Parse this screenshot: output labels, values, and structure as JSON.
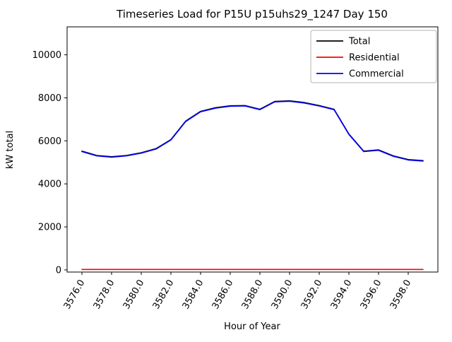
{
  "chart_data": {
    "type": "line",
    "title": "Timeseries Load for P15U p15uhs29_1247  Day 150",
    "xlabel": "Hour of Year",
    "ylabel": "kW total",
    "xlim": [
      3575,
      3600
    ],
    "ylim": [
      -100,
      11300
    ],
    "grid": false,
    "legend_position": "upper right",
    "xticks": {
      "values": [
        3576,
        3578,
        3580,
        3582,
        3584,
        3586,
        3588,
        3590,
        3592,
        3594,
        3596,
        3598
      ],
      "labels": [
        "3576.0",
        "3578.0",
        "3580.0",
        "3582.0",
        "3584.0",
        "3586.0",
        "3588.0",
        "3590.0",
        "3592.0",
        "3594.0",
        "3596.0",
        "3598.0"
      ]
    },
    "yticks": {
      "values": [
        0,
        2000,
        4000,
        6000,
        8000,
        10000
      ],
      "labels": [
        "0",
        "2000",
        "4000",
        "6000",
        "8000",
        "10000"
      ]
    },
    "x": [
      3576,
      3577,
      3578,
      3579,
      3580,
      3581,
      3582,
      3583,
      3584,
      3585,
      3586,
      3587,
      3588,
      3589,
      3590,
      3591,
      3592,
      3593,
      3594,
      3595,
      3596,
      3597,
      3598,
      3599
    ],
    "series": [
      {
        "name": "Total",
        "color": "#000000",
        "values": [
          5520,
          5320,
          5260,
          5320,
          5450,
          5640,
          6060,
          6920,
          7370,
          7540,
          7630,
          7640,
          7470,
          7830,
          7860,
          7780,
          7640,
          7470,
          6320,
          5520,
          5580,
          5300,
          5130,
          5080
        ]
      },
      {
        "name": "Residential",
        "color": "#ff0000",
        "values": [
          20,
          20,
          20,
          20,
          20,
          20,
          20,
          20,
          20,
          20,
          20,
          20,
          20,
          20,
          20,
          20,
          20,
          20,
          20,
          20,
          20,
          20,
          20,
          20
        ]
      },
      {
        "name": "Commercial",
        "color": "#0000ff",
        "values": [
          5500,
          5300,
          5240,
          5300,
          5430,
          5620,
          6040,
          6900,
          7350,
          7520,
          7610,
          7620,
          7450,
          7810,
          7840,
          7760,
          7620,
          7450,
          6300,
          5500,
          5560,
          5280,
          5110,
          5060
        ]
      }
    ]
  }
}
